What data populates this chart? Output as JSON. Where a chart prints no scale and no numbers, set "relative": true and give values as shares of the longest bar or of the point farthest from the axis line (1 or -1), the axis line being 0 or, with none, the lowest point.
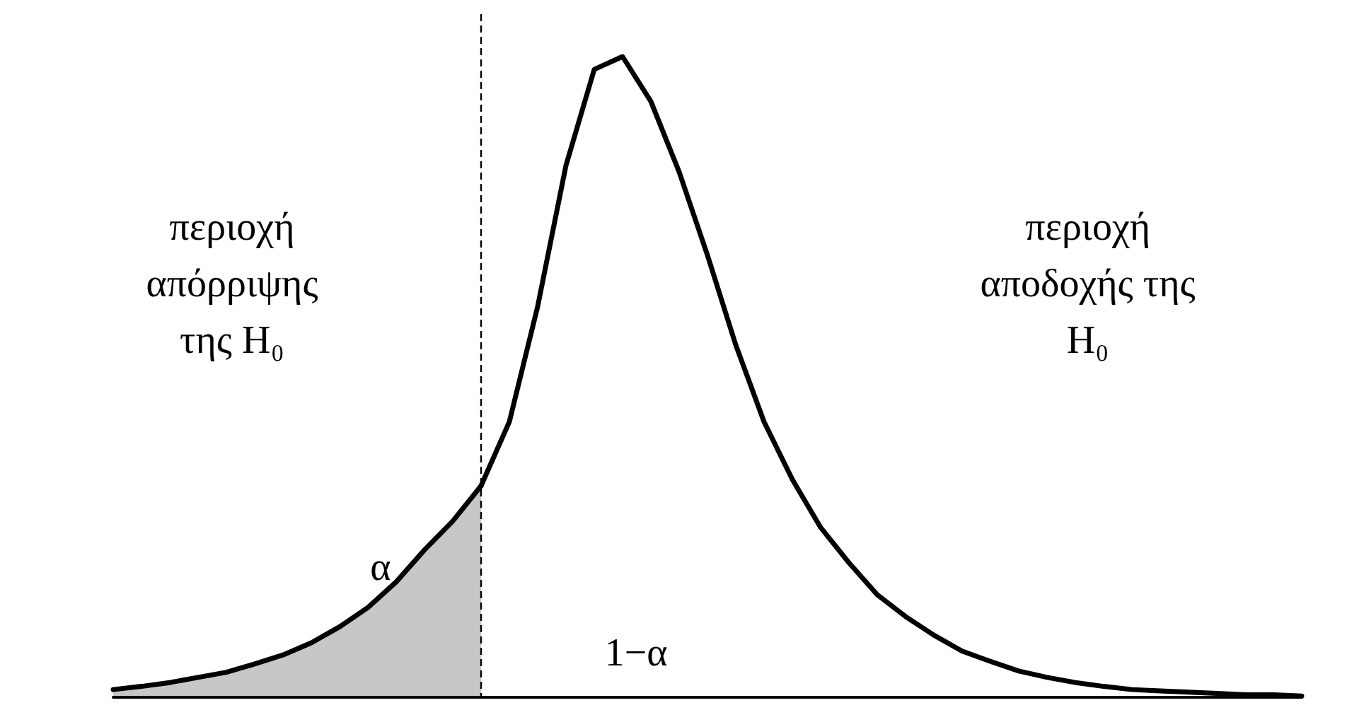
{
  "chart_data": {
    "type": "line",
    "relative": true,
    "categories": [
      null,
      null,
      null,
      null,
      null,
      null,
      null,
      null,
      null,
      null,
      null,
      null,
      null,
      null,
      null,
      null,
      null,
      null,
      null,
      null,
      null,
      null,
      null,
      null,
      null,
      null,
      null,
      null,
      null,
      null,
      null,
      null,
      null,
      null,
      null,
      null,
      null,
      null,
      null,
      null,
      null,
      null,
      null
    ],
    "series": [
      {
        "type": "area",
        "color": "#000000",
        "values": [
          0.012,
          0.017,
          0.023,
          0.031,
          0.039,
          0.052,
          0.066,
          0.085,
          0.11,
          0.14,
          0.18,
          0.23,
          0.275,
          0.33,
          null,
          null,
          null,
          null,
          null,
          null,
          null,
          null,
          null,
          null,
          null,
          null,
          null,
          null,
          null,
          null,
          null,
          null,
          null,
          null,
          null,
          null,
          null,
          null,
          null,
          null,
          null,
          null,
          null
        ]
      },
      {
        "color": "#000000",
        "values": [
          null,
          null,
          null,
          null,
          null,
          null,
          null,
          null,
          null,
          null,
          null,
          null,
          null,
          0.33,
          0.43,
          0.61,
          0.83,
          0.98,
          1,
          0.93,
          0.82,
          0.69,
          0.55,
          0.43,
          0.34,
          0.265,
          0.21,
          0.16,
          0.126,
          0.097,
          0.072,
          0.056,
          0.041,
          0.031,
          0.023,
          0.017,
          0.012,
          0.01,
          0.008,
          0.006,
          0.004,
          0.004,
          0.002
        ]
      }
    ],
    "annotations": [
      "περιοχή απόρριψης της H₀",
      "περιοχή αποδοχής της H₀",
      "α",
      "1−α"
    ]
  }
}
